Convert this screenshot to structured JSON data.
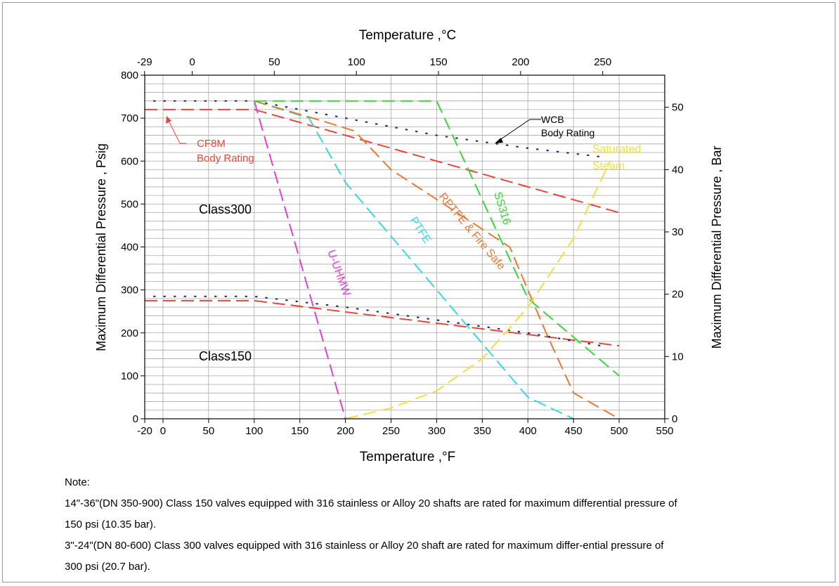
{
  "chart_data": {
    "type": "line",
    "title": "",
    "x_bottom": {
      "label": "Temperature ,°F",
      "range": [
        -20,
        550
      ],
      "ticks": [
        -20,
        0,
        50,
        100,
        150,
        200,
        250,
        300,
        350,
        400,
        450,
        500,
        550
      ]
    },
    "x_top": {
      "label": "Temperature ,°C",
      "ticks": [
        -29,
        0,
        50,
        100,
        150,
        200,
        250
      ]
    },
    "y_left": {
      "label": "Maximum Differential Pressure , Psig",
      "range": [
        0,
        800
      ],
      "ticks": [
        0,
        100,
        200,
        300,
        400,
        500,
        600,
        700,
        800
      ]
    },
    "y_right": {
      "label": "Maximum Differential Pressure , Bar",
      "ticks": [
        0,
        10,
        20,
        30,
        40,
        50
      ]
    },
    "grid": true,
    "series": [
      {
        "name": "CF8M Body Rating",
        "color": "#e8463c",
        "style": "dashed",
        "x": [
          -20,
          100,
          500
        ],
        "y": [
          720,
          720,
          480
        ]
      },
      {
        "name": "",
        "color": "#e8463c",
        "style": "dashed",
        "x": [
          -20,
          100,
          500
        ],
        "y": [
          275,
          275,
          170
        ]
      },
      {
        "name": "WCB Body Rating",
        "color": "#1a2f6b",
        "style": "dotted",
        "x": [
          -10,
          100,
          200,
          300,
          400,
          480
        ],
        "y": [
          740,
          740,
          700,
          660,
          630,
          610
        ]
      },
      {
        "name": "",
        "color": "#1a2f6b",
        "style": "dotted",
        "x": [
          -10,
          100,
          200,
          300,
          400,
          480
        ],
        "y": [
          285,
          285,
          260,
          230,
          200,
          170
        ]
      },
      {
        "name": "U-UHMW",
        "color": "#e040d8",
        "style": "dashed",
        "x": [
          100,
          200
        ],
        "y": [
          740,
          0
        ]
      },
      {
        "name": "PTFE",
        "color": "#38d8e0",
        "style": "dashed",
        "x": [
          100,
          160,
          200,
          300,
          400,
          450
        ],
        "y": [
          740,
          700,
          550,
          300,
          50,
          0
        ]
      },
      {
        "name": "RPTFE & Fire Safe",
        "color": "#e87a30",
        "style": "dashed",
        "x": [
          100,
          180,
          210,
          250,
          380,
          420,
          450,
          500
        ],
        "y": [
          740,
          690,
          670,
          580,
          400,
          200,
          60,
          0
        ]
      },
      {
        "name": "SS316",
        "color": "#38d838",
        "style": "dashed",
        "x": [
          100,
          300,
          400,
          500
        ],
        "y": [
          740,
          740,
          280,
          100
        ]
      },
      {
        "name": "Saturated Steam",
        "color": "#f0e040",
        "style": "dashed",
        "x": [
          200,
          250,
          300,
          350,
          400,
          450,
          490
        ],
        "y": [
          0,
          25,
          65,
          140,
          260,
          420,
          600
        ]
      }
    ],
    "annotations": {
      "cf8m_line1": "CF8M",
      "cf8m_line2": "Body Rating",
      "wcb_line1": "WCB",
      "wcb_line2": "Body Rating",
      "class300": "Class300",
      "class150": "Class150",
      "uhmw": "U-UHMW",
      "ptfe": "PTFE",
      "rptfe": "RPTFE & Fire Safe",
      "ss316": "SS316",
      "steam_line1": "Saturated",
      "steam_line2": "Steam"
    }
  },
  "notes": {
    "heading": "Note:",
    "line1": "14\"-36\"(DN 350-900) Class 150 valves equipped with 316 stainless or Alloy 20 shafts are rated for maximum differential pressure of",
    "line2": "150 psi (10.35 bar).",
    "line3": "3\"-24\"(DN 80-600) Class 300 valves equipped with 316 stainless or Alloy 20 shaft are rated for maximum differ-ential pressure of",
    "line4": "300 psi (20.7 bar)."
  }
}
